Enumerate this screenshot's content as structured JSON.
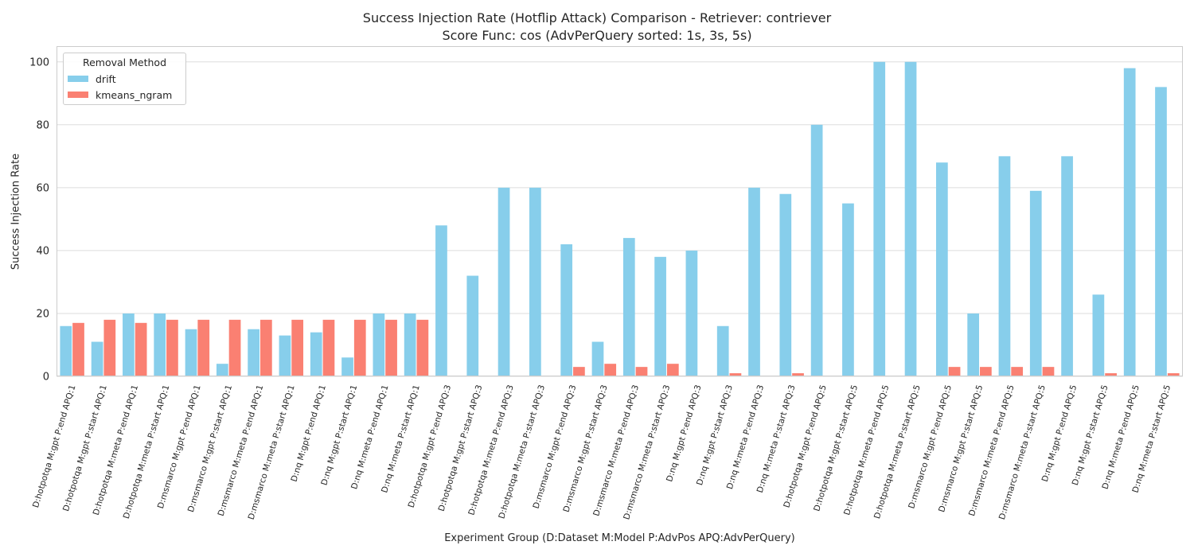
{
  "chart_data": {
    "type": "bar",
    "title_line1": "Success Injection Rate (Hotflip Attack) Comparison - Retriever: contriever",
    "title_line2": "Score Func: cos (AdvPerQuery sorted: 1s, 3s, 5s)",
    "xlabel": "Experiment Group (D:Dataset M:Model P:AdvPos APQ:AdvPerQuery)",
    "ylabel": "Success Injection Rate",
    "ylim": [
      0,
      105
    ],
    "yticks": [
      0,
      20,
      40,
      60,
      80,
      100
    ],
    "grid": true,
    "legend": {
      "title": "Removal Method",
      "placement": "top-left"
    },
    "categories": [
      "D:hotpotqa M:gpt P:end APQ:1",
      "D:hotpotqa M:gpt P:start APQ:1",
      "D:hotpotqa M:meta P:end APQ:1",
      "D:hotpotqa M:meta P:start APQ:1",
      "D:msmarco M:gpt P:end APQ:1",
      "D:msmarco M:gpt P:start APQ:1",
      "D:msmarco M:meta P:end APQ:1",
      "D:msmarco M:meta P:start APQ:1",
      "D:nq M:gpt P:end APQ:1",
      "D:nq M:gpt P:start APQ:1",
      "D:nq M:meta P:end APQ:1",
      "D:nq M:meta P:start APQ:1",
      "D:hotpotqa M:gpt P:end APQ:3",
      "D:hotpotqa M:gpt P:start APQ:3",
      "D:hotpotqa M:meta P:end APQ:3",
      "D:hotpotqa M:meta P:start APQ:3",
      "D:msmarco M:gpt P:end APQ:3",
      "D:msmarco M:gpt P:start APQ:3",
      "D:msmarco M:meta P:end APQ:3",
      "D:msmarco M:meta P:start APQ:3",
      "D:nq M:gpt P:end APQ:3",
      "D:nq M:gpt P:start APQ:3",
      "D:nq M:meta P:end APQ:3",
      "D:nq M:meta P:start APQ:3",
      "D:hotpotqa M:gpt P:end APQ:5",
      "D:hotpotqa M:gpt P:start APQ:5",
      "D:hotpotqa M:meta P:end APQ:5",
      "D:hotpotqa M:meta P:start APQ:5",
      "D:msmarco M:gpt P:end APQ:5",
      "D:msmarco M:gpt P:start APQ:5",
      "D:msmarco M:meta P:end APQ:5",
      "D:msmarco M:meta P:start APQ:5",
      "D:nq M:gpt P:end APQ:5",
      "D:nq M:gpt P:start APQ:5",
      "D:nq M:meta P:end APQ:5",
      "D:nq M:meta P:start APQ:5"
    ],
    "series": [
      {
        "name": "drift",
        "color": "#87ceeb",
        "values": [
          16,
          11,
          20,
          20,
          15,
          4,
          15,
          13,
          14,
          6,
          20,
          20,
          48,
          32,
          60,
          60,
          42,
          11,
          44,
          38,
          40,
          16,
          60,
          58,
          80,
          55,
          100,
          100,
          68,
          20,
          70,
          59,
          70,
          26,
          98,
          92
        ]
      },
      {
        "name": "kmeans_ngram",
        "color": "#fa8072",
        "values": [
          17,
          18,
          17,
          18,
          18,
          18,
          18,
          18,
          18,
          18,
          18,
          18,
          0,
          0,
          0,
          0,
          3,
          4,
          3,
          4,
          0,
          1,
          0,
          1,
          0,
          0,
          0,
          0,
          3,
          3,
          3,
          3,
          0,
          1,
          0,
          1
        ]
      }
    ]
  }
}
